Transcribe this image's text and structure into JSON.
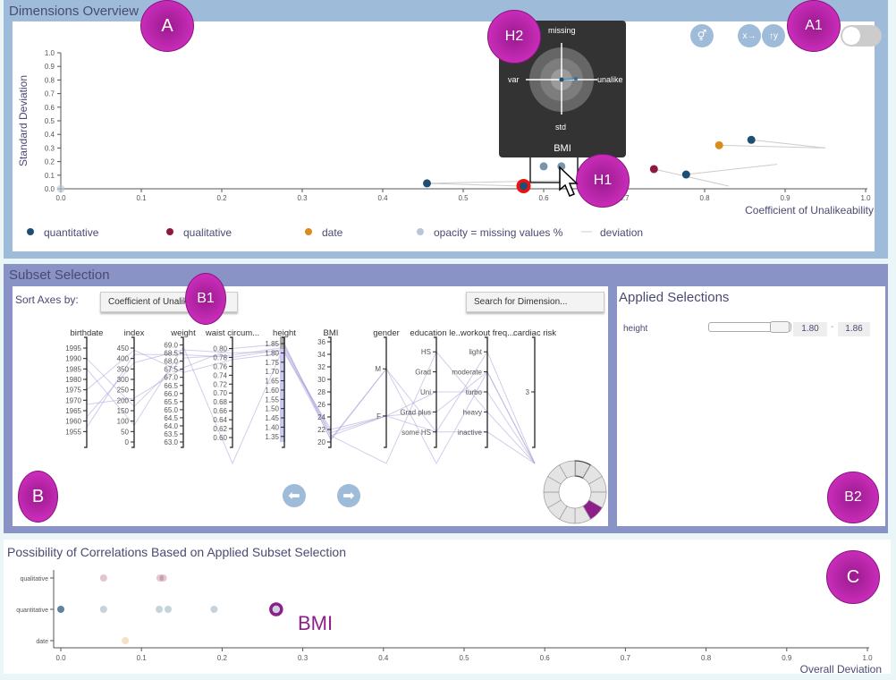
{
  "colors": {
    "quantitative": "#1d4e73",
    "qualitative": "#8b1a3d",
    "date": "#d98b1c",
    "missing": "#b9c6d3",
    "accent": "#8e1f8a",
    "selected": "#ee1111"
  },
  "overview": {
    "title": "Dimensions Overview",
    "xlabel": "Coefficient of Unalikeability",
    "ylabel": "Standard Deviation",
    "xticks": [
      "0.0",
      "0.1",
      "0.2",
      "0.3",
      "0.4",
      "0.5",
      "0.6",
      "0.7",
      "0.8",
      "0.9",
      "1.0"
    ],
    "yticks": [
      "0.0",
      "0.1",
      "0.2",
      "0.3",
      "0.4",
      "0.5",
      "0.6",
      "0.7",
      "0.8",
      "0.9",
      "1.0"
    ],
    "legend": [
      {
        "label": "quantitative",
        "type": "quantitative"
      },
      {
        "label": "qualitative",
        "type": "qualitative"
      },
      {
        "label": "date",
        "type": "date"
      },
      {
        "label": "opacity = missing values %",
        "type": "missing"
      },
      {
        "label": "deviation",
        "type": "line"
      }
    ],
    "icons": [
      "gender-icon",
      "swap-x-icon",
      "swap-y-icon"
    ],
    "toggle_on": false,
    "tooltip": {
      "missing": "missing",
      "var": "var",
      "unalike": "unalike",
      "std": "std",
      "name": "BMI"
    }
  },
  "chart_data": [
    {
      "type": "scatter",
      "title": "Dimensions Overview",
      "xlabel": "Coefficient of Unalikeability",
      "ylabel": "Standard Deviation",
      "xlim": [
        0,
        1
      ],
      "ylim": [
        0,
        1
      ],
      "legend": "bottom",
      "points": [
        {
          "x": 0.0,
          "y": 0.0,
          "type": "missing",
          "opacity": 0.6
        },
        {
          "x": 0.455,
          "y": 0.04,
          "type": "quantitative",
          "dev": [
            0.62,
            0.06
          ]
        },
        {
          "x": 0.575,
          "y": 0.02,
          "type": "quantitative",
          "selected": true,
          "dev": [
            0.45,
            0.04
          ]
        },
        {
          "x": 0.6,
          "y": 0.165,
          "type": "quantitative",
          "opacity": 0.6
        },
        {
          "x": 0.622,
          "y": 0.165,
          "type": "quantitative",
          "opacity": 0.6,
          "name": "BMI",
          "hover": true
        },
        {
          "x": 0.737,
          "y": 0.145,
          "type": "qualitative",
          "dev": [
            0.83,
            0.02
          ]
        },
        {
          "x": 0.777,
          "y": 0.105,
          "type": "quantitative",
          "dev": [
            0.89,
            0.18
          ]
        },
        {
          "x": 0.818,
          "y": 0.32,
          "type": "date",
          "dev": [
            0.95,
            0.3
          ]
        },
        {
          "x": 0.858,
          "y": 0.36,
          "type": "quantitative",
          "dev": [
            0.95,
            0.3
          ]
        }
      ]
    },
    {
      "type": "scatter",
      "title": "Possibility of Correlations Based on Applied Subset Selection",
      "xlabel": "Overall Deviation",
      "xlim": [
        0,
        1
      ],
      "categories": [
        "qualitative",
        "quantitative",
        "date"
      ],
      "xticks": [
        "0.0",
        "0.1",
        "0.2",
        "0.3",
        "0.4",
        "0.5",
        "0.6",
        "0.7",
        "0.8",
        "0.9",
        "1.0"
      ],
      "points": [
        {
          "x": 0.053,
          "cat": "qualitative"
        },
        {
          "x": 0.123,
          "cat": "qualitative"
        },
        {
          "x": 0.127,
          "cat": "qualitative"
        },
        {
          "x": 0.0,
          "cat": "quantitative",
          "opacity": 0.7
        },
        {
          "x": 0.053,
          "cat": "quantitative"
        },
        {
          "x": 0.122,
          "cat": "quantitative"
        },
        {
          "x": 0.133,
          "cat": "quantitative"
        },
        {
          "x": 0.19,
          "cat": "quantitative"
        },
        {
          "x": 0.267,
          "cat": "quantitative",
          "highlight": true,
          "name": "BMI"
        },
        {
          "x": 0.08,
          "cat": "date"
        }
      ]
    }
  ],
  "subset": {
    "title": "Subset Selection",
    "sort_label": "Sort Axes by:",
    "sort_value": "Coefficient of Unalike...",
    "search_placeholder": "Search for Dimension...",
    "axes": [
      {
        "name": "birthdate",
        "domain": [
          1950,
          1998
        ],
        "ticks": [
          1955,
          1960,
          1965,
          1970,
          1975,
          1980,
          1985,
          1990,
          1995
        ]
      },
      {
        "name": "index",
        "domain": [
          0,
          480
        ],
        "ticks": [
          0,
          50,
          100,
          150,
          200,
          250,
          300,
          350,
          400,
          450
        ]
      },
      {
        "name": "weight",
        "domain": [
          63,
          69.2
        ],
        "ticks": [
          "63.0",
          "63.5",
          "64.0",
          "64.5",
          "65.0",
          "65.5",
          "66.0",
          "66.5",
          "67.0",
          "67.5",
          "68.0",
          "68.5",
          "69.0"
        ]
      },
      {
        "name": "waist circum...",
        "domain": [
          0.59,
          0.815
        ],
        "ticks": [
          "0.60",
          "0.62",
          "0.64",
          "0.66",
          "0.68",
          "0.70",
          "0.72",
          "0.74",
          "0.76",
          "0.78",
          "0.80"
        ]
      },
      {
        "name": "height",
        "domain": [
          1.32,
          1.86
        ],
        "ticks": [
          "1.35",
          "1.40",
          "1.45",
          "1.50",
          "1.55",
          "1.60",
          "1.65",
          "1.70",
          "1.75",
          "1.80",
          "1.85"
        ],
        "brush": [
          1.8,
          1.86
        ]
      },
      {
        "name": "BMI",
        "domain": [
          20,
          36
        ],
        "ticks": [
          20,
          22,
          24,
          26,
          28,
          30,
          32,
          34,
          36
        ]
      },
      {
        "name": "gender",
        "cats": [
          "M",
          "F"
        ]
      },
      {
        "name": "education le...",
        "cats": [
          "HS",
          "Grad",
          "Uni",
          "Grad plus",
          "some HS"
        ]
      },
      {
        "name": "workout freq...",
        "cats": [
          "light",
          "moderate",
          "turbo",
          "heavy",
          "inactive"
        ]
      },
      {
        "name": "cardiac risk",
        "cats": [
          "3"
        ],
        "pos": [
          0.5
        ]
      }
    ],
    "records": [
      [
        1957,
        420,
        68.4,
        0.78,
        1.82,
        21,
        "F",
        "Grad plus",
        "moderate",
        null
      ],
      [
        1962,
        380,
        68.7,
        0.79,
        1.81,
        20.5,
        "M",
        "some HS",
        "inactive",
        null
      ],
      [
        1990,
        170,
        68.2,
        0.785,
        1.83,
        21.5,
        "F",
        "Uni",
        "turbo",
        null
      ],
      [
        1975,
        440,
        67.3,
        0.775,
        1.8,
        22,
        "F",
        "some HS",
        "light",
        null
      ],
      [
        1985,
        80,
        68.9,
        null,
        1.84,
        21,
        null,
        "HS",
        "heavy",
        null
      ],
      [
        1968,
        210,
        67.6,
        0.8,
        1.85,
        20.3,
        "M",
        null,
        "moderate",
        null
      ]
    ],
    "nav": [
      "previous-arrow",
      "next-arrow"
    ],
    "donut_segments": 12,
    "donut_active": 4
  },
  "applied": {
    "title": "Applied Selections",
    "items": [
      {
        "name": "height",
        "min": "1.80",
        "max": "1.86",
        "sep": "-",
        "range_fraction": [
          0.66,
          0.86
        ]
      }
    ]
  },
  "correlations": {
    "title": "Possibility of Correlations Based on Applied Subset Selection",
    "xlabel": "Overall Deviation",
    "highlight_label": "BMI"
  },
  "badges": {
    "A": "A",
    "A1": "A1",
    "H1": "H1",
    "H2": "H2",
    "B": "B",
    "B1": "B1",
    "B2": "B2",
    "C": "C"
  }
}
